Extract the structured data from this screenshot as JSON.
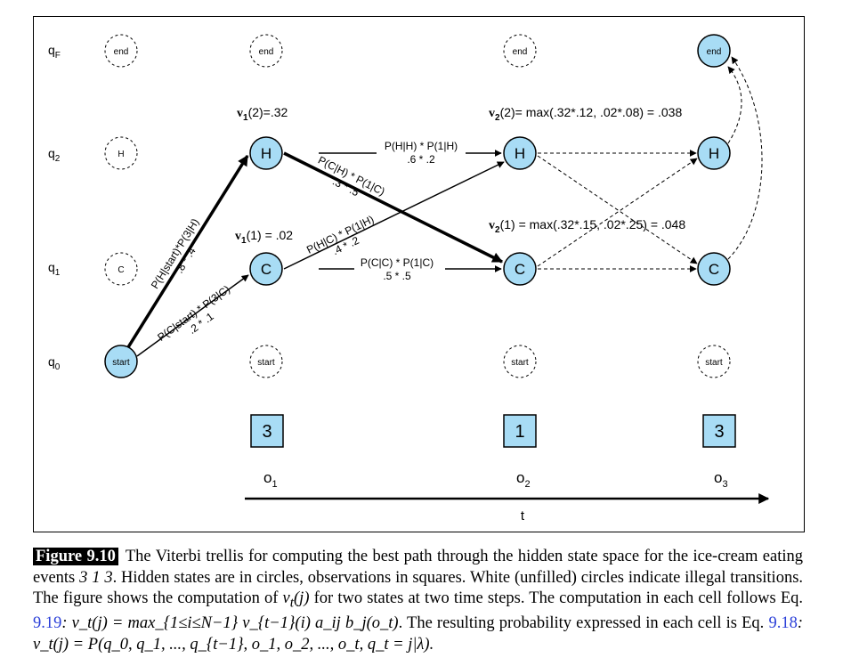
{
  "rows": {
    "qF": "q",
    "qF_sub": "F",
    "q2": "q",
    "q2_sub": "2",
    "q1": "q",
    "q1_sub": "1",
    "q0": "q",
    "q0_sub": "0"
  },
  "states": {
    "end": "end",
    "H": "H",
    "C": "C",
    "start": "start"
  },
  "observations": [
    "3",
    "1",
    "3"
  ],
  "obs_labels": [
    {
      "base": "o",
      "sub": "1"
    },
    {
      "base": "o",
      "sub": "2"
    },
    {
      "base": "o",
      "sub": "3"
    }
  ],
  "time_label": "t",
  "v_labels": {
    "v1_2": {
      "v": "v",
      "sub": "1",
      "rest": "(2)=.32"
    },
    "v1_1": {
      "v": "v",
      "sub": "1",
      "rest": "(1) = .02"
    },
    "v2_2": {
      "v": "v",
      "sub": "2",
      "rest": "(2)= max(.32*.12, .02*.08) = .038"
    },
    "v2_1": {
      "v": "v",
      "sub": "2",
      "rest": "(1) = max(.32*.15, .02*.25) = .048"
    }
  },
  "edge_labels": {
    "start_H_1": "P(H|start)*P(3|H)",
    "start_H_2": ".8 * .4",
    "start_C_1": "P(C|start) * P(3|C)",
    "start_C_2": ".2 * .1",
    "HH_1": "P(H|H) * P(1|H)",
    "HH_2": ".6 * .2",
    "HC_1": "P(C|H) * P(1|C)",
    "HC_2": ".3 * .5",
    "CH_1": "P(H|C) * P(1|H)",
    "CH_2": ".4 * .2",
    "CC_1": "P(C|C) * P(1|C)",
    "CC_2": ".5 * .5"
  },
  "caption": {
    "tag": "Figure 9.10",
    "p1": "The Viterbi trellis for computing the best path through the hidden state space for the ice-cream eating events ",
    "events": "3 1 3",
    "p2": ". Hidden states are in circles, observations in squares. White (unfilled) circles indicate illegal transitions. The figure shows the computation of ",
    "vt": "v",
    "vt_sub": "t",
    "vt_arg": "(j)",
    "p3": " for two states at two time steps. The computation in each cell follows Eq. ",
    "eq1": "9.19",
    "formula1": ": v_t(j) = max_{1≤i≤N−1} v_{t−1}(i) a_ij b_j(o_t)",
    "p4": ". The resulting probability expressed in each cell is Eq. ",
    "eq2": "9.18",
    "formula2": ": v_t(j) = P(q_0, q_1, ..., q_{t−1}, o_1, o_2, ..., o_t, q_t = j|λ)."
  },
  "colors": {
    "state_fill": "#a8dcf5",
    "line": "#000000"
  }
}
